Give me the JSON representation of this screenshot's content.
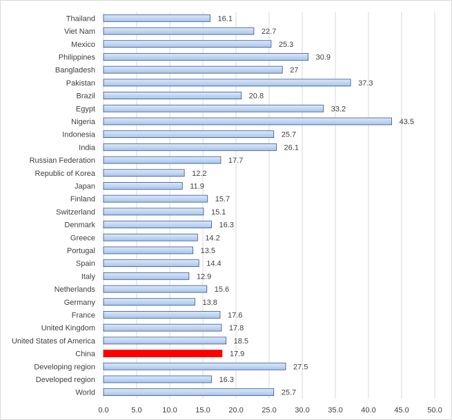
{
  "chart_data": {
    "type": "bar",
    "orientation": "horizontal",
    "categories": [
      "Thailand",
      "Viet Nam",
      "Mexico",
      "Philippines",
      "Bangladesh",
      "Pakistan",
      "Brazil",
      "Egypt",
      "Nigeria",
      "Indonesia",
      "India",
      "Russian Federation",
      "Republic of Korea",
      "Japan",
      "Finland",
      "Switzerland",
      "Denmark",
      "Greece",
      "Portugal",
      "Spain",
      "Italy",
      "Netherlands",
      "Germany",
      "France",
      "United Kingdom",
      "United States of America",
      "China",
      "Developing region",
      "Developed region",
      "World"
    ],
    "values": [
      16.1,
      22.7,
      25.3,
      30.9,
      27,
      37.3,
      20.8,
      33.2,
      43.5,
      25.7,
      26.1,
      17.7,
      12.2,
      11.9,
      15.7,
      15.1,
      16.3,
      14.2,
      13.5,
      14.4,
      12.9,
      15.6,
      13.8,
      17.6,
      17.8,
      18.5,
      17.9,
      27.5,
      16.3,
      25.7
    ],
    "value_labels": [
      "16.1",
      "22.7",
      "25.3",
      "30.9",
      "27",
      "37.3",
      "20.8",
      "33.2",
      "43.5",
      "25.7",
      "26.1",
      "17.7",
      "12.2",
      "11.9",
      "15.7",
      "15.1",
      "16.3",
      "14.2",
      "13.5",
      "14.4",
      "12.9",
      "15.6",
      "13.8",
      "17.6",
      "17.8",
      "18.5",
      "17.9",
      "27.5",
      "16.3",
      "25.7"
    ],
    "highlight_category": "China",
    "x_ticks": [
      "0.0",
      "5.0",
      "10.0",
      "15.0",
      "20.0",
      "25.0",
      "30.0",
      "35.0",
      "40.0",
      "45.0",
      "50.0"
    ],
    "xlim": [
      0,
      50
    ],
    "grid": true,
    "title": "",
    "xlabel": "",
    "ylabel": "",
    "colors": {
      "bar_fill": "#c6d9f1",
      "bar_fill_dark": "#9dbce6",
      "bar_stroke": "#2f5597",
      "highlight_fill": "#ff0000",
      "grid": "#d9d9d9",
      "text": "#404040"
    }
  }
}
